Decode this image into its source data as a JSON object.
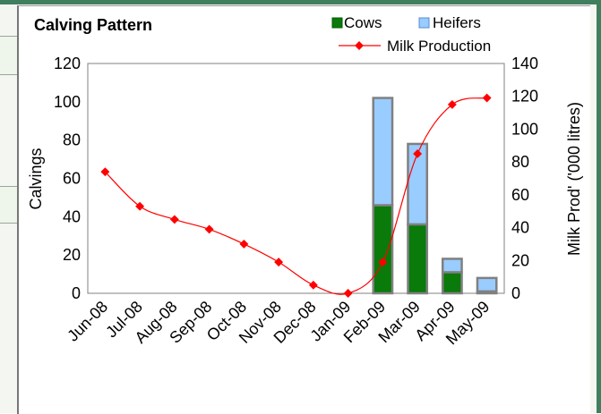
{
  "chart_data": {
    "type": "bar",
    "title": "Calving Pattern",
    "categories": [
      "Jun-08",
      "Jul-08",
      "Aug-08",
      "Sep-08",
      "Oct-08",
      "Nov-08",
      "Dec-08",
      "Jan-09",
      "Feb-09",
      "Mar-09",
      "Apr-09",
      "May-09"
    ],
    "series": [
      {
        "name": "Cows",
        "type": "bar",
        "stacked": true,
        "axis": "left",
        "color": "#0a7a0a",
        "values": [
          0,
          0,
          0,
          0,
          0,
          0,
          0,
          0,
          46,
          36,
          11,
          1
        ]
      },
      {
        "name": "Heifers",
        "type": "bar",
        "stacked": true,
        "axis": "left",
        "color": "#99ccff",
        "values": [
          0,
          0,
          0,
          0,
          0,
          0,
          0,
          0,
          56,
          42,
          7,
          7
        ]
      },
      {
        "name": "Milk Production",
        "type": "line",
        "axis": "right",
        "color": "#ff0000",
        "marker": "diamond",
        "values": [
          74,
          53,
          45,
          39,
          30,
          19,
          5,
          0,
          19,
          85,
          115,
          119
        ]
      }
    ],
    "ylabel": "Calvings",
    "y2label": "Milk Prod' ('000 litres)",
    "ylim": [
      0,
      120
    ],
    "y2lim": [
      0,
      140
    ],
    "yticks": [
      "0",
      "20",
      "40",
      "60",
      "80",
      "100",
      "120"
    ],
    "y2ticks": [
      "0",
      "20",
      "40",
      "60",
      "80",
      "100",
      "120",
      "140"
    ],
    "grid": false,
    "legend": "top-right"
  }
}
